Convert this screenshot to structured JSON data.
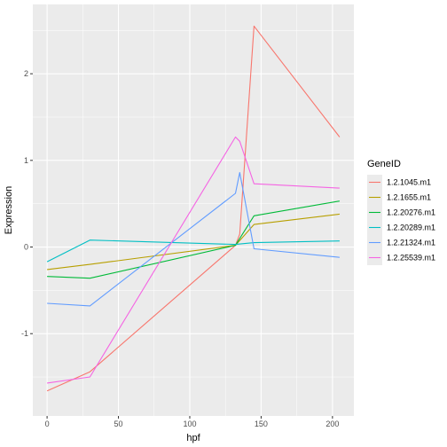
{
  "chart_data": {
    "type": "line",
    "title": "",
    "xlabel": "hpf",
    "ylabel": "Expression",
    "xlim": [
      -10,
      215
    ],
    "ylim": [
      -1.95,
      2.8
    ],
    "x_ticks": [
      0,
      50,
      100,
      150,
      200
    ],
    "y_ticks": [
      -1,
      0,
      1,
      2
    ],
    "grid": true,
    "panel_background": "#ebebeb",
    "legend": {
      "title": "GeneID",
      "placement": "right"
    },
    "series": [
      {
        "name": "1.2.1045.m1",
        "color": "#F8766D",
        "x": [
          0,
          30,
          132,
          135,
          145,
          205
        ],
        "y": [
          -1.66,
          -1.44,
          0.02,
          0.15,
          2.55,
          1.27
        ]
      },
      {
        "name": "1.2.1655.m1",
        "color": "#B79F00",
        "x": [
          0,
          30,
          132,
          145,
          205
        ],
        "y": [
          -0.26,
          -0.2,
          0.02,
          0.26,
          0.38
        ]
      },
      {
        "name": "1.2.20276.m1",
        "color": "#00BA38",
        "x": [
          0,
          30,
          132,
          145,
          205
        ],
        "y": [
          -0.34,
          -0.36,
          0.02,
          0.36,
          0.53
        ]
      },
      {
        "name": "1.2.20289.m1",
        "color": "#00BFC4",
        "x": [
          0,
          30,
          132,
          145,
          205
        ],
        "y": [
          -0.17,
          0.08,
          0.03,
          0.05,
          0.07
        ]
      },
      {
        "name": "1.2.21324.m1",
        "color": "#619CFF",
        "x": [
          0,
          30,
          132,
          135,
          145,
          205
        ],
        "y": [
          -0.65,
          -0.68,
          0.62,
          0.86,
          -0.02,
          -0.12
        ]
      },
      {
        "name": "1.2.25539.m1",
        "color": "#F564E3",
        "x": [
          0,
          30,
          132,
          135,
          145,
          205
        ],
        "y": [
          -1.57,
          -1.5,
          1.27,
          1.22,
          0.73,
          0.68
        ]
      }
    ]
  }
}
